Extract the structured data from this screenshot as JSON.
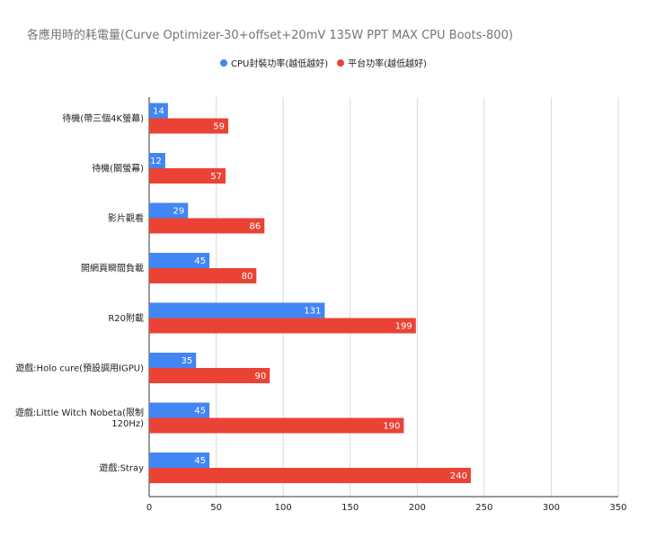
{
  "chart_data": {
    "type": "bar",
    "orientation": "horizontal",
    "title": "各應用時的耗電量(Curve Optimizer-30+offset+20mV 135W PPT MAX CPU Boots-800)",
    "categories": [
      "待機(帶三個4K螢幕)",
      "待機(關螢幕)",
      "影片觀看",
      "開網頁瞬間負載",
      "R20附載",
      "遊戲:Holo cure(預設調用IGPU)",
      "遊戲:Little Witch Nobeta(限制120Hz)",
      "遊戲:Stray"
    ],
    "series": [
      {
        "name": "CPU封裝功率(越低越好)",
        "color": "#4285f4",
        "values": [
          14,
          12,
          29,
          45,
          131,
          35,
          45,
          45
        ]
      },
      {
        "name": "平台功率(越低越好)",
        "color": "#ea4335",
        "values": [
          59,
          57,
          86,
          80,
          199,
          90,
          190,
          240
        ]
      }
    ],
    "xlim": [
      0,
      350
    ],
    "xticks": [
      0,
      50,
      100,
      150,
      200,
      250,
      300,
      350
    ],
    "grid": true,
    "legend_position": "top"
  }
}
